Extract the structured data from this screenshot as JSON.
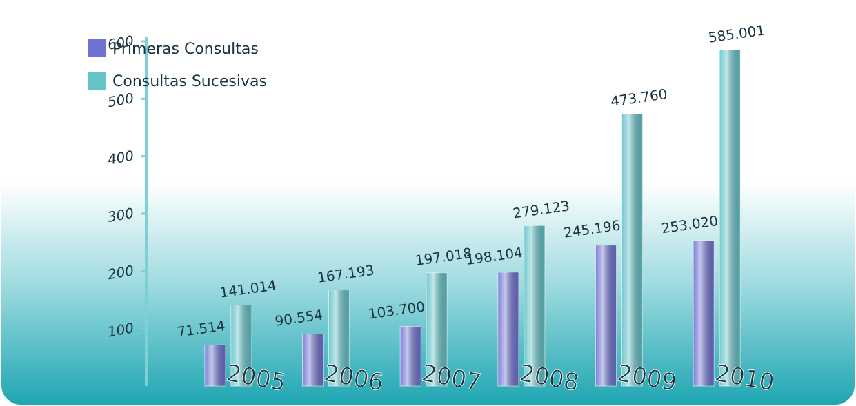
{
  "chart_data": {
    "type": "bar",
    "categories": [
      "2005",
      "2006",
      "2007",
      "2008",
      "2009",
      "2010"
    ],
    "series": [
      {
        "name": "Primeras Consultas",
        "color": "#6f72d2",
        "values": [
          71.514,
          90.554,
          103.7,
          198.104,
          245.196,
          253.02
        ],
        "value_labels": [
          "71.514",
          "90.554",
          "103.700",
          "198.104",
          "245.196",
          "253.020"
        ]
      },
      {
        "name": "Consultas Sucesivas",
        "color": "#63c3c9",
        "values": [
          141.014,
          167.193,
          197.018,
          279.123,
          473.76,
          585.001
        ],
        "value_labels": [
          "141.014",
          "167.193",
          "197.018",
          "279.123",
          "473.760",
          "585.001"
        ]
      }
    ],
    "ylim": [
      0,
      600
    ],
    "yticks": [
      100,
      200,
      300,
      400,
      500,
      600
    ]
  }
}
